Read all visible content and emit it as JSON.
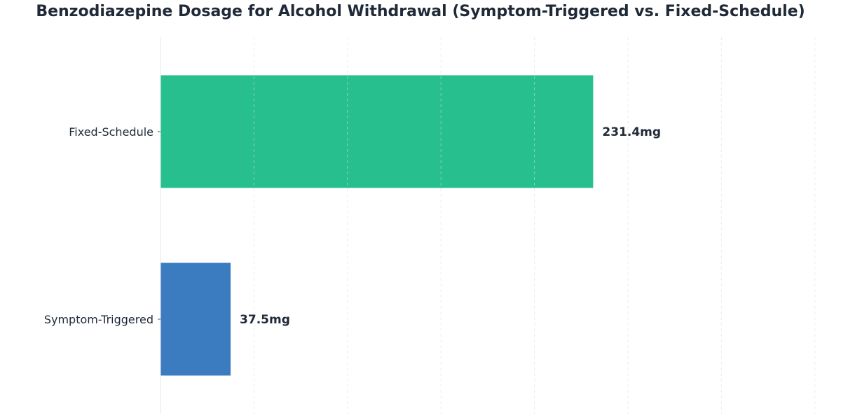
{
  "chart_data": {
    "type": "bar",
    "orientation": "horizontal",
    "title": "Benzodiazepine Dosage for Alcohol Withdrawal (Symptom-Triggered vs. Fixed-Schedule)",
    "xlabel": "",
    "ylabel": "",
    "categories": [
      "Symptom-Triggered",
      "Fixed-Schedule"
    ],
    "values": [
      37.5,
      231.4
    ],
    "value_labels": [
      "37.5mg",
      "231.4mg"
    ],
    "colors": [
      "#3b7bbf",
      "#27bf8d"
    ],
    "xlim": [
      0,
      360
    ],
    "grid": true,
    "legend": "none"
  }
}
